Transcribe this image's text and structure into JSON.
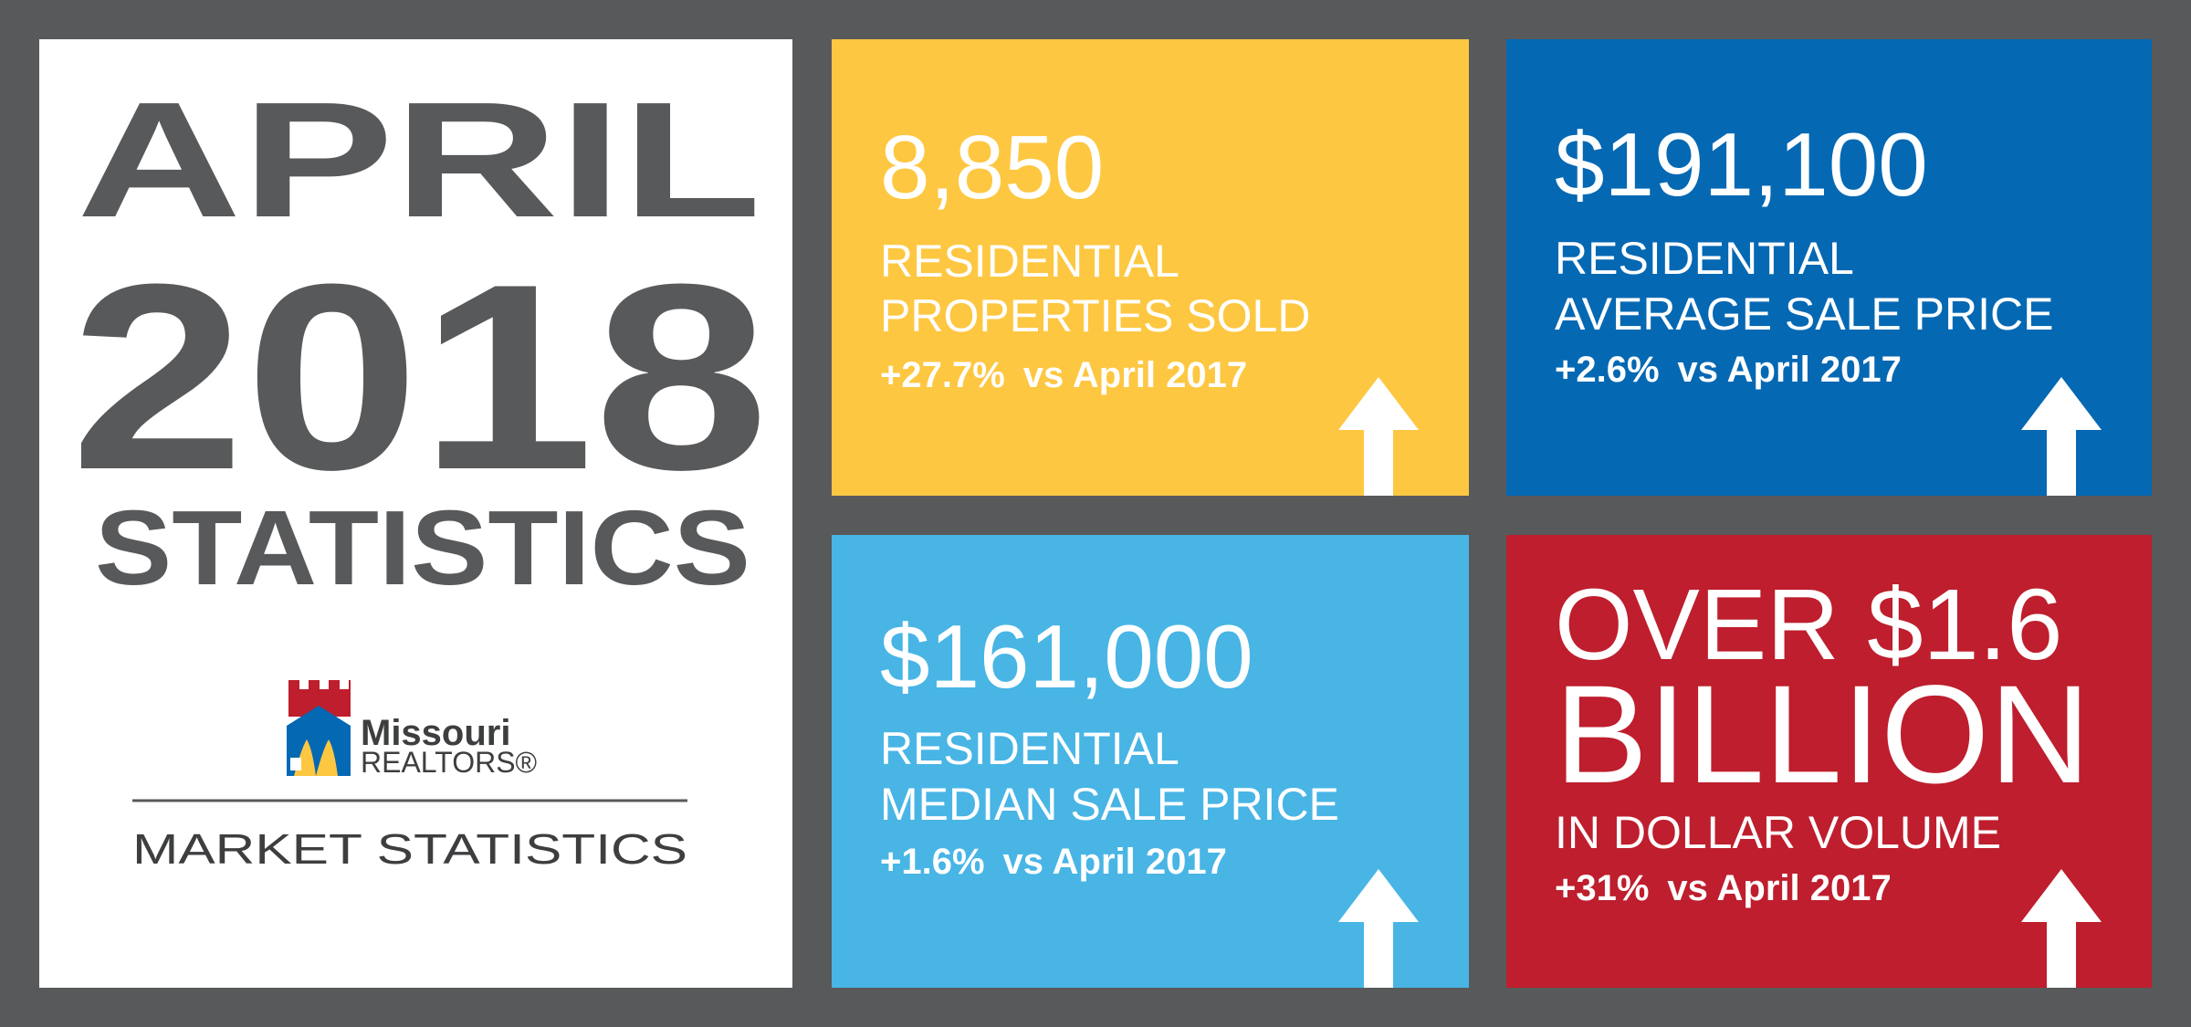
{
  "title": {
    "month": "APRIL",
    "year": "2018",
    "word": "STATISTICS"
  },
  "logo": {
    "name": "Missouri",
    "sub": "REALTORS®",
    "tagline": "MARKET STATISTICS"
  },
  "cards": [
    {
      "value_lines": [
        "8,850"
      ],
      "label_lines": [
        "RESIDENTIAL",
        "PROPERTIES SOLD"
      ],
      "change": "+27.7%",
      "comparison": "vs April 2017"
    },
    {
      "value_lines": [
        "$191,100"
      ],
      "label_lines": [
        "RESIDENTIAL",
        "AVERAGE SALE PRICE"
      ],
      "change": "+2.6%",
      "comparison": "vs April 2017"
    },
    {
      "value_lines": [
        "$161,000"
      ],
      "label_lines": [
        "RESIDENTIAL",
        "MEDIAN SALE PRICE"
      ],
      "change": "+1.6%",
      "comparison": "vs April 2017"
    },
    {
      "value_lines": [
        "OVER $1.6",
        "BILLION"
      ],
      "label_lines": [
        "IN DOLLAR VOLUME"
      ],
      "change": "+31%",
      "comparison": "vs April 2017"
    }
  ]
}
